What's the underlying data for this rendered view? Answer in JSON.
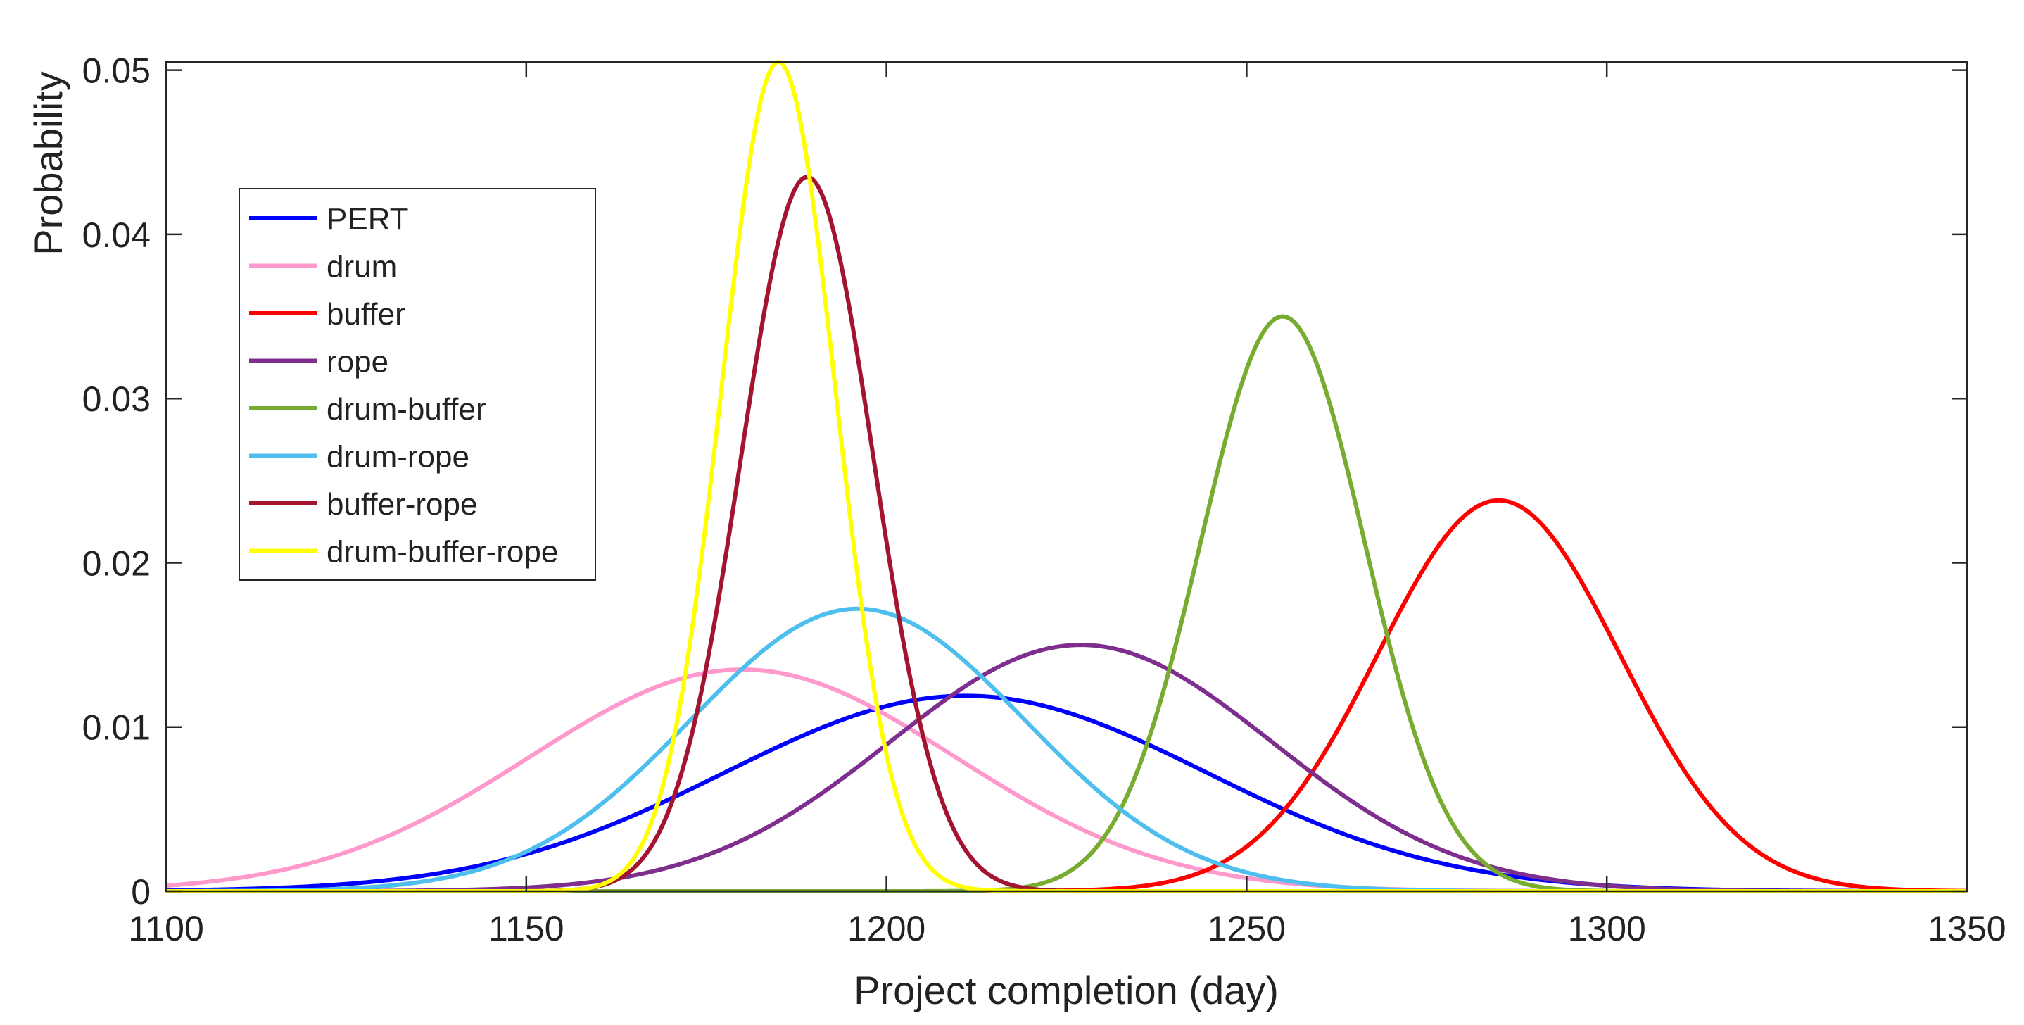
{
  "chart_data": {
    "type": "line",
    "title": "",
    "xlabel": "Project completion (day)",
    "ylabel": "Probability",
    "xlim": [
      1100,
      1350
    ],
    "ylim": [
      0,
      0.0505
    ],
    "xticks": [
      1100,
      1150,
      1200,
      1250,
      1300,
      1350
    ],
    "xtick_labels": [
      "1100",
      "1150",
      "1200",
      "1250",
      "1300",
      "1350"
    ],
    "yticks": [
      0,
      0.01,
      0.02,
      0.03,
      0.04,
      0.05
    ],
    "ytick_labels": [
      "0",
      "0.01",
      "0.02",
      "0.03",
      "0.04",
      "0.05"
    ],
    "grid": false,
    "legend_position": "upper-left",
    "series": [
      {
        "name": "PERT",
        "color": "#0000ff",
        "mean": 1211,
        "std": 33.5,
        "peak": 0.0119
      },
      {
        "name": "drum",
        "color": "#ff99cc",
        "mean": 1180,
        "std": 29.5,
        "peak": 0.0135
      },
      {
        "name": "buffer",
        "color": "#ff0000",
        "mean": 1285,
        "std": 16.8,
        "peak": 0.0238
      },
      {
        "name": "rope",
        "color": "#7e2f8e",
        "mean": 1227,
        "std": 26.5,
        "peak": 0.015
      },
      {
        "name": "drum-buffer",
        "color": "#77ac30",
        "mean": 1255,
        "std": 11.4,
        "peak": 0.035
      },
      {
        "name": "drum-rope",
        "color": "#4dbeee",
        "mean": 1196,
        "std": 23.2,
        "peak": 0.0172
      },
      {
        "name": "buffer-rope",
        "color": "#a2142f",
        "mean": 1189,
        "std": 9.2,
        "peak": 0.0435
      },
      {
        "name": "drum-buffer-rope",
        "color": "#ffff00",
        "mean": 1185,
        "std": 7.9,
        "peak": 0.0505
      }
    ]
  }
}
